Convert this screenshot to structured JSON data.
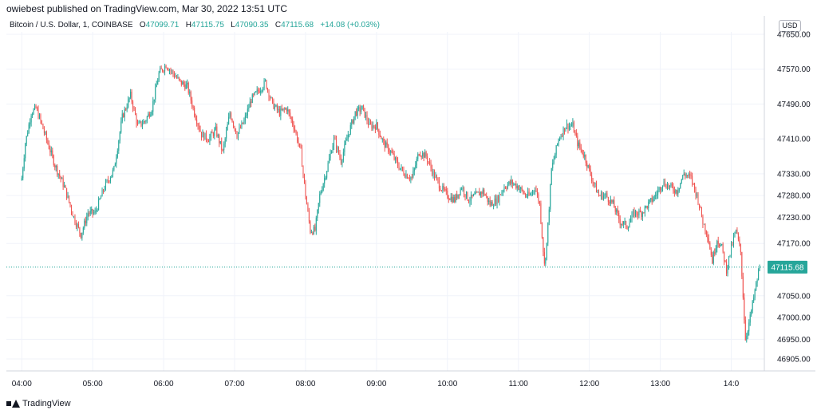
{
  "header": {
    "text": "owiebest published on TradingView.com, Mar 30, 2022 13:51 UTC"
  },
  "legend": {
    "symbol": "Bitcoin / U.S. Dollar, 1, COINBASE",
    "o_label": "O",
    "o_value": "47099.71",
    "h_label": "H",
    "h_value": "47115.75",
    "l_label": "L",
    "l_value": "47090.35",
    "c_label": "C",
    "c_value": "47115.68",
    "change": "+14.08 (+0.03%)"
  },
  "currency": "USD",
  "footer": {
    "brand": "TradingView"
  },
  "colors": {
    "up": "#26a69a",
    "down": "#ef5350",
    "grid": "#f0f3fa",
    "axis": "#131722",
    "last_price_bg": "#26a69a"
  },
  "chart_data": {
    "type": "candlestick",
    "interval": "1 minute",
    "ylim": [
      46860,
      47690
    ],
    "y_ticks": [
      47650,
      47570,
      47490,
      47410,
      47330,
      47280,
      47230,
      47170,
      47115.68,
      47050,
      47000,
      46950,
      46905
    ],
    "y_tick_labels": [
      "47650.00",
      "47570.00",
      "47490.00",
      "47410.00",
      "47330.00",
      "47280.00",
      "47230.00",
      "47170.00",
      "47115.68",
      "47050.00",
      "47000.00",
      "46950.00",
      "46905.00"
    ],
    "x_ticks": [
      0,
      60,
      120,
      180,
      240,
      300,
      360,
      420,
      480,
      540,
      600
    ],
    "x_tick_labels": [
      "04:00",
      "05:00",
      "06:00",
      "07:00",
      "08:00",
      "09:00",
      "10:00",
      "11:00",
      "12:00",
      "13:00",
      "14:0"
    ],
    "x_start_minute_offset": -13,
    "last_price": 47115.68,
    "last_price_label": "47115.68",
    "anchors": [
      [
        0,
        47320
      ],
      [
        3,
        47400
      ],
      [
        8,
        47470
      ],
      [
        12,
        47480
      ],
      [
        16,
        47450
      ],
      [
        22,
        47400
      ],
      [
        28,
        47350
      ],
      [
        36,
        47300
      ],
      [
        44,
        47230
      ],
      [
        50,
        47190
      ],
      [
        56,
        47240
      ],
      [
        62,
        47240
      ],
      [
        70,
        47300
      ],
      [
        78,
        47340
      ],
      [
        85,
        47460
      ],
      [
        92,
        47510
      ],
      [
        98,
        47440
      ],
      [
        104,
        47450
      ],
      [
        110,
        47480
      ],
      [
        116,
        47560
      ],
      [
        122,
        47580
      ],
      [
        128,
        47560
      ],
      [
        134,
        47540
      ],
      [
        140,
        47530
      ],
      [
        146,
        47470
      ],
      [
        152,
        47420
      ],
      [
        158,
        47410
      ],
      [
        164,
        47430
      ],
      [
        170,
        47380
      ],
      [
        176,
        47470
      ],
      [
        182,
        47420
      ],
      [
        188,
        47450
      ],
      [
        194,
        47500
      ],
      [
        200,
        47520
      ],
      [
        206,
        47540
      ],
      [
        212,
        47490
      ],
      [
        218,
        47470
      ],
      [
        224,
        47480
      ],
      [
        230,
        47440
      ],
      [
        236,
        47380
      ],
      [
        240,
        47280
      ],
      [
        244,
        47200
      ],
      [
        248,
        47200
      ],
      [
        252,
        47280
      ],
      [
        258,
        47340
      ],
      [
        264,
        47410
      ],
      [
        270,
        47360
      ],
      [
        276,
        47420
      ],
      [
        282,
        47470
      ],
      [
        288,
        47480
      ],
      [
        294,
        47440
      ],
      [
        300,
        47440
      ],
      [
        306,
        47400
      ],
      [
        312,
        47380
      ],
      [
        318,
        47350
      ],
      [
        324,
        47330
      ],
      [
        330,
        47320
      ],
      [
        336,
        47380
      ],
      [
        342,
        47370
      ],
      [
        348,
        47330
      ],
      [
        354,
        47300
      ],
      [
        360,
        47280
      ],
      [
        366,
        47270
      ],
      [
        372,
        47300
      ],
      [
        378,
        47270
      ],
      [
        384,
        47280
      ],
      [
        390,
        47290
      ],
      [
        396,
        47260
      ],
      [
        402,
        47270
      ],
      [
        408,
        47300
      ],
      [
        414,
        47310
      ],
      [
        420,
        47300
      ],
      [
        426,
        47280
      ],
      [
        430,
        47280
      ],
      [
        434,
        47300
      ],
      [
        438,
        47260
      ],
      [
        442,
        47120
      ],
      [
        444,
        47170
      ],
      [
        448,
        47340
      ],
      [
        454,
        47410
      ],
      [
        460,
        47440
      ],
      [
        466,
        47440
      ],
      [
        470,
        47400
      ],
      [
        476,
        47370
      ],
      [
        482,
        47320
      ],
      [
        488,
        47280
      ],
      [
        494,
        47280
      ],
      [
        500,
        47260
      ],
      [
        506,
        47220
      ],
      [
        512,
        47210
      ],
      [
        518,
        47240
      ],
      [
        524,
        47240
      ],
      [
        530,
        47260
      ],
      [
        536,
        47280
      ],
      [
        542,
        47310
      ],
      [
        548,
        47300
      ],
      [
        554,
        47290
      ],
      [
        560,
        47330
      ],
      [
        566,
        47320
      ],
      [
        572,
        47270
      ],
      [
        576,
        47220
      ],
      [
        580,
        47190
      ],
      [
        584,
        47130
      ],
      [
        588,
        47180
      ],
      [
        592,
        47160
      ],
      [
        596,
        47110
      ],
      [
        600,
        47160
      ],
      [
        604,
        47200
      ],
      [
        608,
        47150
      ],
      [
        612,
        46950
      ],
      [
        616,
        47000
      ],
      [
        620,
        47060
      ],
      [
        624,
        47116
      ]
    ]
  }
}
